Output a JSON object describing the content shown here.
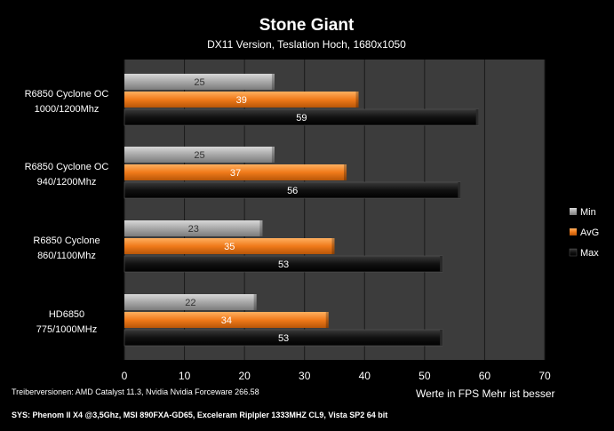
{
  "chart_data": {
    "type": "bar",
    "orientation": "horizontal",
    "title": "Stone Giant",
    "subtitle": "DX11 Version, Teslation Hoch, 1680x1050",
    "categories": [
      [
        "R6850 Cyclone OC",
        "1000/1200Mhz"
      ],
      [
        "R6850 Cyclone OC",
        "940/1200Mhz"
      ],
      [
        "R6850 Cyclone",
        "860/1100Mhz"
      ],
      [
        "HD6850",
        "775/1000MHz"
      ]
    ],
    "series": [
      {
        "name": "Min",
        "values": [
          25,
          25,
          23,
          22
        ],
        "color": "#a8a8a8"
      },
      {
        "name": "AvG",
        "values": [
          39,
          37,
          35,
          34
        ],
        "color": "#f07a1a"
      },
      {
        "name": "Max",
        "values": [
          59,
          56,
          53,
          53
        ],
        "color": "#111111"
      }
    ],
    "xlim": [
      0,
      70
    ],
    "xticks": [
      0,
      10,
      20,
      30,
      40,
      50,
      60,
      70
    ],
    "xlabel": "Werte in FPS Mehr ist besser",
    "grid": true,
    "legend_position": "right",
    "plot_background": "#3c3c3c"
  },
  "footnotes": {
    "drivers": "Treiberversionen: AMD Catalyst 11.3, Nvidia Nvidia Forceware 266.58",
    "system": "SYS: Phenom II X4 @3,5Ghz, MSI 890FXA-GD65, Exceleram Riplpler 1333MHZ CL9, Vista SP2 64 bit"
  }
}
